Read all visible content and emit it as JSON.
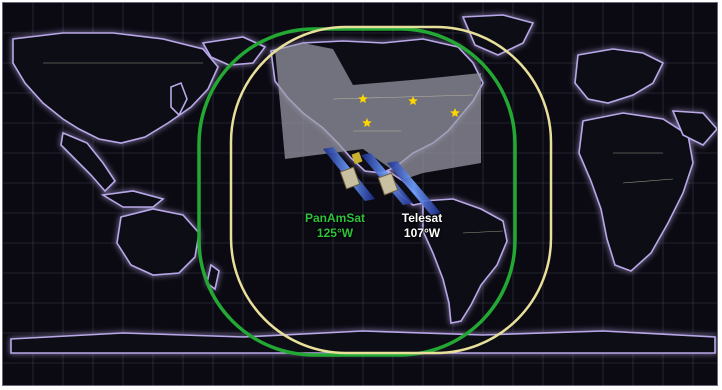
{
  "map": {
    "background_color": "#0b0a12",
    "land_glow_color": "#b9a8e8",
    "grid_color": "#3a3a4a",
    "footprints": [
      {
        "name_ref": "panamsat",
        "color": "#23a834"
      },
      {
        "name_ref": "telesat",
        "color": "#e8e09a"
      }
    ],
    "coverage_region_color": "#9a9aa6"
  },
  "satellites": {
    "panamsat": {
      "name": "PanAmSat",
      "longitude": "125°W",
      "color": "#2fc23a"
    },
    "telesat": {
      "name": "Telesat",
      "longitude": "107°W",
      "color": "#ffffff"
    }
  },
  "markers": {
    "star_color": "#ffd700",
    "count": 4
  }
}
